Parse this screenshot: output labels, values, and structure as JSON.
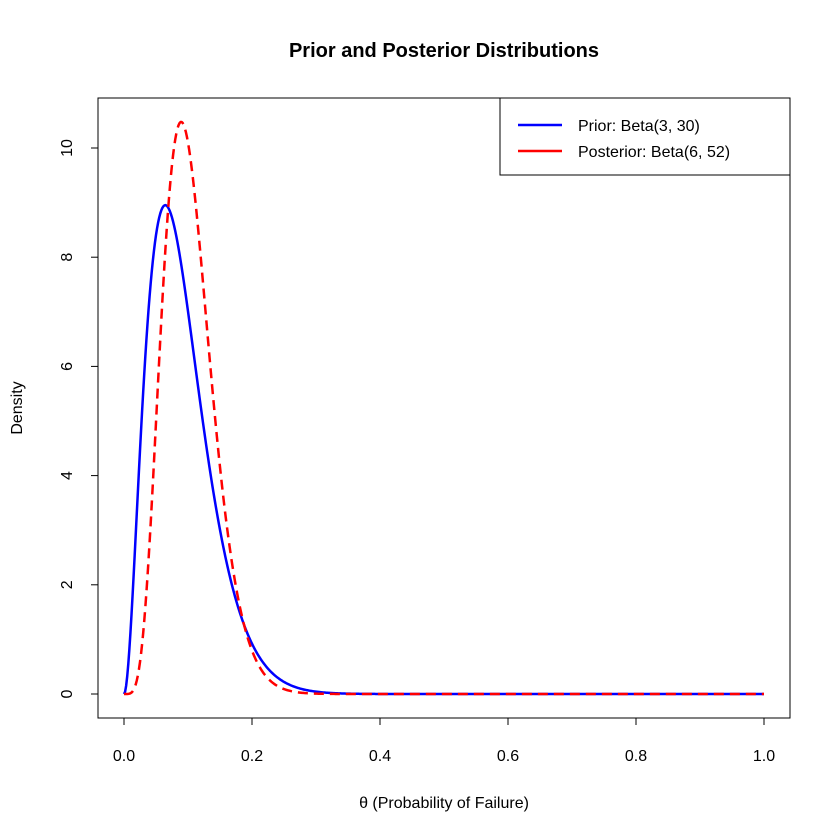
{
  "chart_data": {
    "type": "line",
    "title": "Prior and Posterior Distributions",
    "xlabel": "θ (Probability of Failure)",
    "ylabel": "Density",
    "xlim": [
      0,
      1
    ],
    "ylim": [
      0,
      10.5
    ],
    "x_ticks": [
      {
        "value": 0.0,
        "label": "0.0"
      },
      {
        "value": 0.2,
        "label": "0.2"
      },
      {
        "value": 0.4,
        "label": "0.4"
      },
      {
        "value": 0.6,
        "label": "0.6"
      },
      {
        "value": 0.8,
        "label": "0.8"
      },
      {
        "value": 1.0,
        "label": "1.0"
      }
    ],
    "y_ticks": [
      {
        "value": 0,
        "label": "0"
      },
      {
        "value": 2,
        "label": "2"
      },
      {
        "value": 4,
        "label": "4"
      },
      {
        "value": 6,
        "label": "6"
      },
      {
        "value": 8,
        "label": "8"
      },
      {
        "value": 10,
        "label": "10"
      }
    ],
    "grid": false,
    "legend_position": "top-right",
    "series": [
      {
        "name": "Prior: Beta(3, 30)",
        "alpha": 3,
        "beta": 30,
        "color": "#0000ff",
        "style": "solid"
      },
      {
        "name": "Posterior: Beta(6, 52)",
        "alpha": 6,
        "beta": 52,
        "color": "#ff0000",
        "style": "dashed"
      }
    ]
  }
}
